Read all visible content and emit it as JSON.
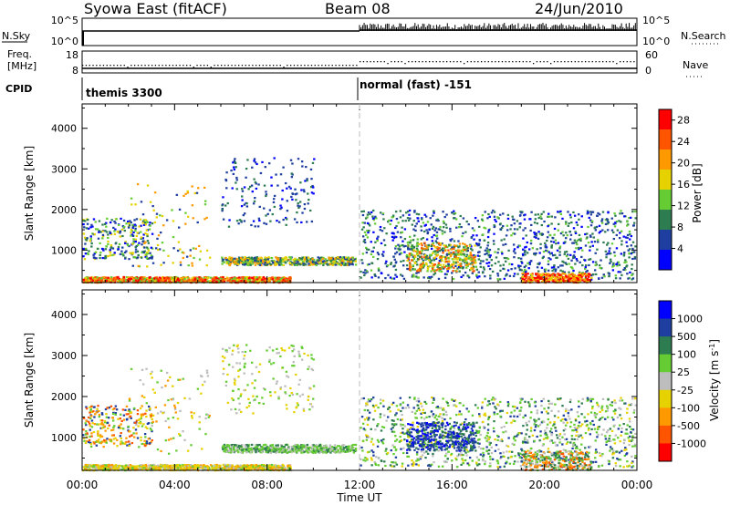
{
  "header": {
    "station": "Syowa East (fitACF)",
    "beam": "Beam 08",
    "date": "24/Jun/2010"
  },
  "nsky_panel": {
    "left_label": "N.Sky",
    "right_label": "N.Search",
    "ticks_left": [
      "10^5",
      "10^0"
    ],
    "ticks_right": [
      "10^5",
      "10^0"
    ]
  },
  "freq_panel": {
    "left_label_1": "Freq.",
    "left_label_2": "[MHz]",
    "right_label": "Nave",
    "ticks_left": [
      "18",
      "8"
    ],
    "ticks_right": [
      "60",
      "0"
    ]
  },
  "cpid": {
    "label": "CPID",
    "mode_1": "themis 3300",
    "mode_2": "normal (fast) -151"
  },
  "colors": {
    "power_scale": [
      "#0000ff",
      "#1e3fa0",
      "#2e7d50",
      "#66cc33",
      "#e6d200",
      "#ff9900",
      "#ff5500",
      "#ff0000"
    ],
    "velocity_scale": [
      "#0000ff",
      "#1e3fa0",
      "#2e7d50",
      "#66cc33",
      "#bdbdbd",
      "#e6d200",
      "#ff9900",
      "#ff5500",
      "#ff0000"
    ],
    "guide_line": "#bbbbbb"
  },
  "chart_data": [
    {
      "type": "heatmap",
      "title": "",
      "xlabel": "Time UT",
      "ylabel": "Slant Range [km]",
      "x_ticks": [
        "00:00",
        "04:00",
        "08:00",
        "12:00",
        "16:00",
        "20:00",
        "00:00"
      ],
      "y_ticks": [
        "1000",
        "2000",
        "3000",
        "4000"
      ],
      "ylim": [
        200,
        4600
      ],
      "colorbar": {
        "label": "Power [dB]",
        "ticks": [
          "4",
          "8",
          "12",
          "16",
          "20",
          "24",
          "28"
        ],
        "range": [
          0,
          30
        ]
      }
    },
    {
      "type": "heatmap",
      "title": "",
      "xlabel": "Time UT",
      "ylabel": "Slant Range [km]",
      "x_ticks": [
        "00:00",
        "04:00",
        "08:00",
        "12:00",
        "16:00",
        "20:00",
        "00:00"
      ],
      "y_ticks": [
        "1000",
        "2000",
        "3000",
        "4000"
      ],
      "ylim": [
        200,
        4600
      ],
      "colorbar": {
        "label": "Velocity [m s",
        "label_sup": "-1",
        "label_end": "]",
        "ticks": [
          "1000",
          "500",
          "100",
          "25",
          "-25",
          "-100",
          "-500",
          "-1000"
        ]
      }
    }
  ]
}
